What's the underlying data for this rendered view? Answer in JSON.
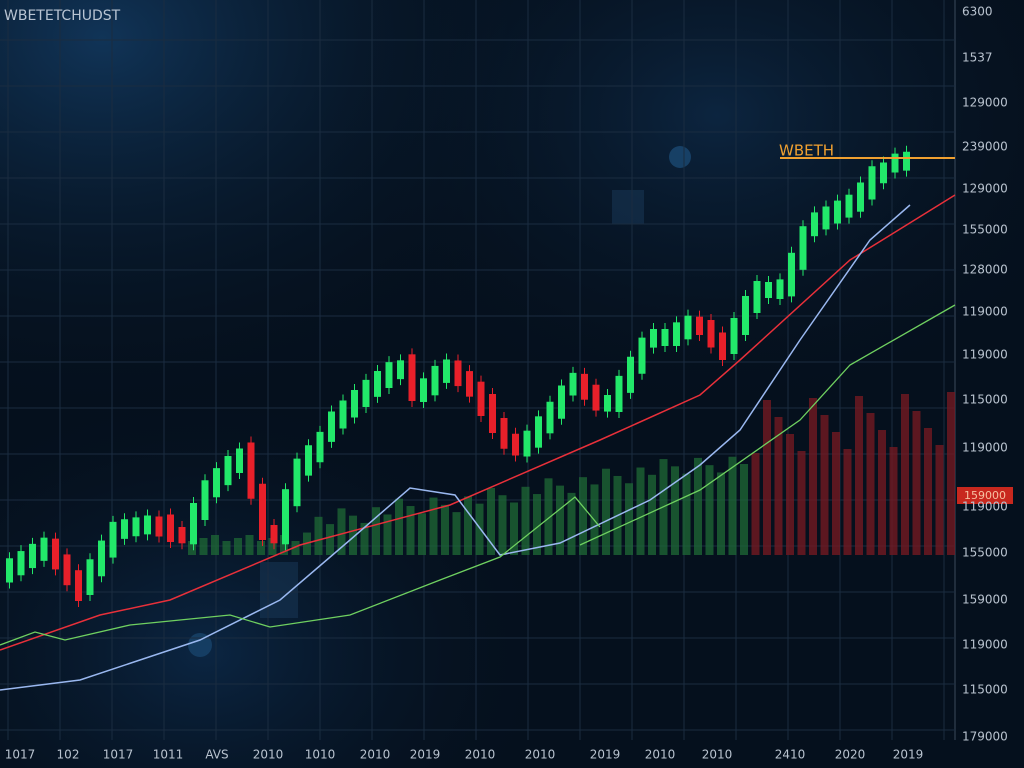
{
  "chart_data": {
    "type": "candlestick",
    "title": "WBETETCHUDST",
    "y_labels": [
      "6300",
      "1537",
      "129000",
      "239000",
      "129000",
      "155000",
      "128000",
      "119000",
      "119000",
      "115000",
      "119000",
      "119000",
      "155000",
      "159000",
      "119000",
      "115000",
      "179000"
    ],
    "x_labels": [
      "1017",
      "102",
      "1017",
      "1011",
      "AVS",
      "2010",
      "1010",
      "2010",
      "2019",
      "2010",
      "2010",
      "2019",
      "2010",
      "2010",
      "2410",
      "2020",
      "2019"
    ],
    "marker_label": "WBETH",
    "price_tag": "159000",
    "colors": {
      "up": "#22e86a",
      "down": "#e8202a",
      "ma_red": "#e8303a",
      "ma_blue": "#9ab8f0",
      "ma_green": "#6fd060",
      "marker": "#f0a030"
    },
    "grid": true
  }
}
